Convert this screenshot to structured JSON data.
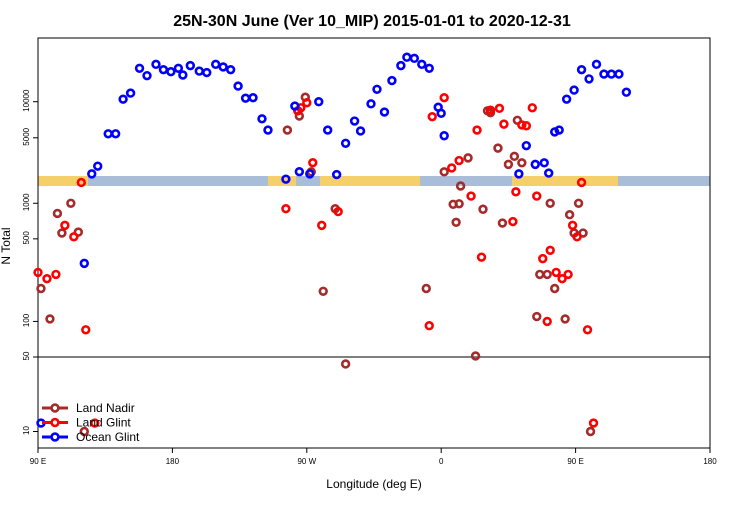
{
  "chart_data": {
    "type": "scatter",
    "title": "25N-30N June (Ver 10_MIP)   2015-01-01 to 2020-12-31",
    "xlabel": "Longitude (deg E)",
    "ylabel": "N Total",
    "xlim": [
      90,
      450
    ],
    "x_ticks": [
      {
        "value": 90,
        "label": "90 E"
      },
      {
        "value": 180,
        "label": "180"
      },
      {
        "value": 270,
        "label": "90 W"
      },
      {
        "value": 360,
        "label": "0"
      },
      {
        "value": 450,
        "label": "90 E"
      },
      {
        "value": 540,
        "label": "180"
      }
    ],
    "x_display_range": [
      90,
      540
    ],
    "ylim_lower": [
      7,
      50
    ],
    "ylim_upper": [
      50,
      1400
    ],
    "y_scale": "log",
    "y_ticks_lower": [
      {
        "value": 10,
        "label": "10"
      },
      {
        "value": 50,
        "label": "50"
      }
    ],
    "y_ticks_upper": [
      {
        "value": 100,
        "label": "100"
      },
      {
        "value": 500,
        "label": "500"
      },
      {
        "value": 1000,
        "label": "1000"
      }
    ],
    "y_ticks_top": [
      {
        "value": 5000,
        "label": "5000"
      },
      {
        "value": 10000,
        "label": "10000"
      }
    ],
    "ylim_top": [
      2400,
      34000
    ],
    "legend_position": "bottom-left",
    "series": [
      {
        "name": "Land Nadir",
        "color": "#a52a2a",
        "points": [
          [
            92,
            190
          ],
          [
            98,
            105
          ],
          [
            103,
            820
          ],
          [
            106,
            560
          ],
          [
            112,
            1000
          ],
          [
            117,
            570
          ],
          [
            121,
            10
          ],
          [
            257,
            5800
          ],
          [
            264,
            8400
          ],
          [
            265,
            7600
          ],
          [
            269,
            10900
          ],
          [
            273,
            2600
          ],
          [
            281,
            180
          ],
          [
            289,
            900
          ],
          [
            296,
            43
          ],
          [
            350,
            190
          ],
          [
            362,
            2600
          ],
          [
            368,
            980
          ],
          [
            370,
            690
          ],
          [
            372,
            990
          ],
          [
            373,
            1400
          ],
          [
            378,
            3400
          ],
          [
            383,
            51
          ],
          [
            388,
            890
          ],
          [
            391,
            8400
          ],
          [
            393,
            8100
          ],
          [
            398,
            4100
          ],
          [
            401,
            680
          ],
          [
            405,
            3000
          ],
          [
            409,
            3500
          ],
          [
            411,
            7000
          ],
          [
            414,
            2200
          ],
          [
            424,
            110
          ],
          [
            426,
            250
          ],
          [
            431,
            250
          ],
          [
            433,
            1000
          ],
          [
            436,
            190
          ],
          [
            443,
            105
          ],
          [
            446,
            800
          ],
          [
            449,
            560
          ],
          [
            452,
            1000
          ],
          [
            455,
            560
          ],
          [
            460,
            10
          ]
        ]
      },
      {
        "name": "Land Glint",
        "color": "#ff0000",
        "points": [
          [
            90,
            260
          ],
          [
            96,
            230
          ],
          [
            102,
            250
          ],
          [
            108,
            650
          ],
          [
            114,
            520
          ],
          [
            119,
            1500
          ],
          [
            122,
            85
          ],
          [
            128,
            12
          ],
          [
            256,
            900
          ],
          [
            264,
            8400
          ],
          [
            266,
            8900
          ],
          [
            270,
            9800
          ],
          [
            274,
            3100
          ],
          [
            280,
            650
          ],
          [
            291,
            850
          ],
          [
            352,
            92
          ],
          [
            354,
            7500
          ],
          [
            362,
            10800
          ],
          [
            367,
            2800
          ],
          [
            372,
            2300
          ],
          [
            380,
            1150
          ],
          [
            384,
            5800
          ],
          [
            387,
            350
          ],
          [
            393,
            8500
          ],
          [
            399,
            8800
          ],
          [
            402,
            6500
          ],
          [
            408,
            700
          ],
          [
            410,
            1250
          ],
          [
            414,
            6400
          ],
          [
            417,
            6300
          ],
          [
            421,
            8900
          ],
          [
            424,
            1150
          ],
          [
            428,
            340
          ],
          [
            431,
            100
          ],
          [
            433,
            400
          ],
          [
            437,
            260
          ],
          [
            441,
            230
          ],
          [
            445,
            250
          ],
          [
            448,
            650
          ],
          [
            451,
            520
          ],
          [
            454,
            1500
          ],
          [
            458,
            85
          ],
          [
            462,
            12
          ]
        ]
      },
      {
        "name": "Ocean Glint",
        "color": "#0000ff",
        "points": [
          [
            92,
            12
          ],
          [
            121,
            310
          ],
          [
            126,
            2500
          ],
          [
            130,
            2900
          ],
          [
            137,
            5400
          ],
          [
            142,
            5400
          ],
          [
            147,
            10500
          ],
          [
            152,
            11800
          ],
          [
            158,
            19000
          ],
          [
            163,
            16500
          ],
          [
            169,
            20500
          ],
          [
            174,
            18500
          ],
          [
            179,
            17800
          ],
          [
            184,
            19000
          ],
          [
            187,
            16700
          ],
          [
            192,
            20000
          ],
          [
            198,
            18000
          ],
          [
            203,
            17500
          ],
          [
            209,
            20500
          ],
          [
            214,
            19500
          ],
          [
            219,
            18500
          ],
          [
            224,
            13500
          ],
          [
            229,
            10700
          ],
          [
            234,
            10800
          ],
          [
            240,
            7200
          ],
          [
            244,
            5800
          ],
          [
            256,
            1600
          ],
          [
            262,
            9200
          ],
          [
            265,
            1850
          ],
          [
            272,
            2500
          ],
          [
            278,
            10000
          ],
          [
            284,
            5800
          ],
          [
            290,
            1750
          ],
          [
            296,
            4500
          ],
          [
            302,
            6900
          ],
          [
            306,
            5700
          ],
          [
            313,
            9600
          ],
          [
            317,
            12700
          ],
          [
            322,
            8200
          ],
          [
            327,
            15000
          ],
          [
            333,
            20000
          ],
          [
            337,
            23500
          ],
          [
            342,
            23000
          ],
          [
            347,
            20500
          ],
          [
            352,
            19000
          ],
          [
            358,
            9000
          ],
          [
            360,
            8000
          ],
          [
            362,
            5200
          ],
          [
            412,
            2500
          ],
          [
            417,
            4300
          ],
          [
            423,
            3000
          ],
          [
            429,
            2200
          ],
          [
            432,
            1800
          ],
          [
            436,
            5600
          ],
          [
            439,
            5800
          ],
          [
            444,
            10500
          ],
          [
            449,
            12500
          ],
          [
            454,
            18500
          ],
          [
            459,
            15500
          ],
          [
            464,
            20500
          ],
          [
            469,
            17000
          ],
          [
            474,
            17000
          ],
          [
            479,
            17000
          ],
          [
            484,
            12000
          ]
        ]
      }
    ]
  }
}
